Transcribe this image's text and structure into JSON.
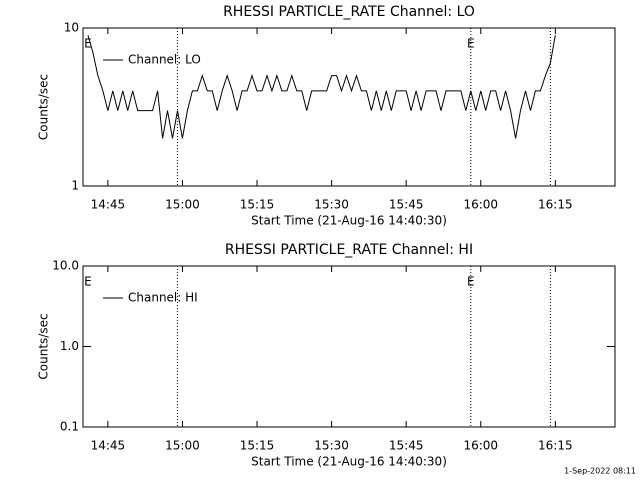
{
  "chart_data": [
    {
      "type": "line",
      "title": "RHESSI PARTICLE_RATE Channel: LO",
      "x_label": "Start Time (21-Aug-16 14:40:30)",
      "y_label": "Counts/sec",
      "log_y": true,
      "xlim": [
        "14:40",
        "16:27"
      ],
      "xticks": [
        "14:45",
        "15:00",
        "15:15",
        "15:30",
        "15:45",
        "16:00",
        "16:15"
      ],
      "ylim": [
        1,
        10
      ],
      "yticks": [
        1,
        10
      ],
      "legend": "top-left",
      "vlines": [
        "14:59",
        "15:58",
        "16:14"
      ],
      "annotations": [
        {
          "text": "E",
          "x": "14:41"
        },
        {
          "text": "E",
          "x": "15:58"
        }
      ],
      "x": [
        "14:41",
        "14:42",
        "14:43",
        "14:44",
        "14:45",
        "14:46",
        "14:47",
        "14:48",
        "14:49",
        "14:50",
        "14:51",
        "14:52",
        "14:53",
        "14:54",
        "14:55",
        "14:56",
        "14:57",
        "14:58",
        "14:59",
        "15:00",
        "15:01",
        "15:02",
        "15:03",
        "15:04",
        "15:05",
        "15:06",
        "15:07",
        "15:08",
        "15:09",
        "15:10",
        "15:11",
        "15:12",
        "15:13",
        "15:14",
        "15:15",
        "15:16",
        "15:17",
        "15:18",
        "15:19",
        "15:20",
        "15:21",
        "15:22",
        "15:23",
        "15:24",
        "15:25",
        "15:26",
        "15:27",
        "15:28",
        "15:29",
        "15:30",
        "15:31",
        "15:32",
        "15:33",
        "15:34",
        "15:35",
        "15:36",
        "15:37",
        "15:38",
        "15:39",
        "15:40",
        "15:41",
        "15:42",
        "15:43",
        "15:44",
        "15:45",
        "15:46",
        "15:47",
        "15:48",
        "15:49",
        "15:50",
        "15:51",
        "15:52",
        "15:53",
        "15:54",
        "15:55",
        "15:56",
        "15:57",
        "15:58",
        "15:59",
        "16:00",
        "16:01",
        "16:02",
        "16:03",
        "16:04",
        "16:05",
        "16:06",
        "16:07",
        "16:08",
        "16:09",
        "16:10",
        "16:11",
        "16:12",
        "16:13",
        "16:14",
        "16:15"
      ],
      "series": [
        {
          "name": "Channel: LO",
          "color": "#000000",
          "values": [
            9,
            7,
            5,
            4,
            3,
            4,
            3,
            4,
            3,
            4,
            3,
            3,
            3,
            3,
            4,
            2,
            3,
            2,
            3,
            2,
            3,
            4,
            4,
            5,
            4,
            4,
            3,
            4,
            5,
            4,
            3,
            4,
            4,
            5,
            4,
            4,
            5,
            4,
            5,
            4,
            4,
            5,
            4,
            4,
            3,
            4,
            4,
            4,
            4,
            5,
            5,
            4,
            5,
            4,
            5,
            4,
            4,
            3,
            4,
            3,
            4,
            3,
            4,
            4,
            4,
            3,
            4,
            3,
            4,
            4,
            4,
            3,
            4,
            4,
            4,
            4,
            3,
            4,
            3,
            4,
            3,
            4,
            4,
            3,
            4,
            3,
            2,
            3,
            4,
            3,
            4,
            4,
            5,
            6,
            9
          ]
        }
      ]
    },
    {
      "type": "line",
      "title": "RHESSI PARTICLE_RATE Channel: HI",
      "x_label": "Start Time (21-Aug-16 14:40:30)",
      "y_label": "Counts/sec",
      "log_y": true,
      "xlim": [
        "14:40",
        "16:27"
      ],
      "xticks": [
        "14:45",
        "15:00",
        "15:15",
        "15:30",
        "15:45",
        "16:00",
        "16:15"
      ],
      "ylim": [
        0.1,
        10
      ],
      "yticks": [
        0.1,
        {
          "value": 1,
          "label": "1.0"
        },
        {
          "value": 10,
          "label": "10.0"
        }
      ],
      "legend": "top-left",
      "vlines": [
        "14:59",
        "15:58",
        "16:14"
      ],
      "annotations": [
        {
          "text": "E",
          "x": "14:41"
        },
        {
          "text": "E",
          "x": "15:58"
        }
      ],
      "x": [],
      "series": [
        {
          "name": "Channel: HI",
          "color": "#000000",
          "values": []
        }
      ]
    }
  ],
  "footer": "1-Sep-2022 08:11"
}
